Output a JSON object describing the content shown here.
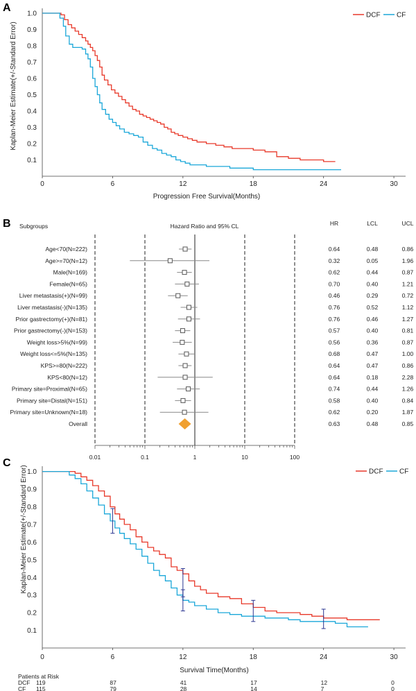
{
  "chart_data": [
    {
      "type": "line",
      "panel_label": "A",
      "ylabel": "Kaplan-Meier Estimate(+/-Standard Error)",
      "xlabel": "Progression Free Survival(Months)",
      "xticks": [
        0,
        6,
        12,
        18,
        24,
        30
      ],
      "yticks": [
        0.1,
        0.2,
        0.3,
        0.4,
        0.5,
        0.6,
        0.7,
        0.8,
        0.9,
        1.0
      ],
      "ytick_labels": [
        "0.1",
        "0.2",
        "0.3",
        "0.4",
        "0.5",
        "0.6",
        "0.7",
        "0.8",
        "0.9",
        "1.0"
      ],
      "xlim": [
        0,
        31
      ],
      "ylim": [
        0,
        1.03
      ],
      "legend": "top-right",
      "series": [
        {
          "name": "DCF",
          "color": "#e8392a",
          "x": [
            0,
            1.6,
            1.9,
            2.2,
            2.5,
            2.8,
            3.1,
            3.4,
            3.7,
            3.9,
            4.1,
            4.3,
            4.5,
            4.7,
            4.9,
            5.1,
            5.3,
            5.6,
            5.9,
            6.2,
            6.5,
            6.8,
            7.1,
            7.4,
            7.7,
            8.0,
            8.3,
            8.6,
            8.9,
            9.2,
            9.5,
            9.8,
            10.1,
            10.4,
            10.7,
            11.0,
            11.3,
            11.6,
            12.0,
            12.4,
            12.8,
            13.2,
            14.0,
            14.8,
            15.5,
            16.2,
            17.0,
            18.0,
            19.0,
            20.0,
            21.0,
            22.0,
            23.0,
            24.0,
            25.0
          ],
          "y": [
            1.0,
            0.99,
            0.96,
            0.93,
            0.91,
            0.89,
            0.87,
            0.85,
            0.83,
            0.81,
            0.79,
            0.77,
            0.74,
            0.71,
            0.67,
            0.62,
            0.59,
            0.56,
            0.53,
            0.51,
            0.49,
            0.47,
            0.45,
            0.43,
            0.41,
            0.4,
            0.38,
            0.37,
            0.36,
            0.35,
            0.34,
            0.33,
            0.32,
            0.3,
            0.29,
            0.27,
            0.26,
            0.25,
            0.24,
            0.23,
            0.22,
            0.21,
            0.2,
            0.19,
            0.18,
            0.17,
            0.17,
            0.16,
            0.15,
            0.12,
            0.11,
            0.1,
            0.1,
            0.09,
            0.09
          ]
        },
        {
          "name": "CF",
          "color": "#1aa7d9",
          "x": [
            0,
            1.5,
            1.8,
            2.0,
            2.3,
            2.6,
            3.0,
            3.4,
            3.7,
            3.9,
            4.1,
            4.3,
            4.5,
            4.7,
            4.9,
            5.1,
            5.4,
            5.7,
            6.0,
            6.3,
            6.6,
            7.0,
            7.4,
            7.8,
            8.2,
            8.6,
            9.0,
            9.4,
            9.8,
            10.2,
            10.6,
            11.0,
            11.4,
            11.8,
            12.2,
            12.6,
            13.0,
            14.0,
            15.0,
            16.0,
            17.0,
            18.0,
            20.0,
            22.0,
            24.0,
            25.5
          ],
          "y": [
            1.0,
            0.97,
            0.92,
            0.86,
            0.81,
            0.79,
            0.79,
            0.78,
            0.75,
            0.72,
            0.67,
            0.6,
            0.55,
            0.5,
            0.45,
            0.41,
            0.38,
            0.35,
            0.33,
            0.31,
            0.29,
            0.27,
            0.26,
            0.25,
            0.24,
            0.21,
            0.19,
            0.17,
            0.16,
            0.14,
            0.13,
            0.12,
            0.1,
            0.09,
            0.08,
            0.07,
            0.07,
            0.06,
            0.06,
            0.05,
            0.05,
            0.04,
            0.04,
            0.04,
            0.04,
            0.04
          ]
        }
      ]
    },
    {
      "type": "forest",
      "panel_label": "B",
      "header_subgroups": "Subgroups",
      "header_plot": "Hazard Ratio and 95% CL",
      "columns": [
        "HR",
        "LCL",
        "UCL"
      ],
      "x_scale": "log",
      "xticks": [
        0.01,
        0.1,
        1,
        10,
        100
      ],
      "xtick_labels": [
        "0.01",
        "0.1",
        "1",
        "10",
        "100"
      ],
      "reference_lines": [
        0.01,
        0.1,
        10,
        100
      ],
      "rows": [
        {
          "label": "Age<70(N=222)",
          "hr": 0.64,
          "lcl": 0.48,
          "ucl": 0.86,
          "hr_text": "0.64",
          "lcl_text": "0.48",
          "ucl_text": "0.86"
        },
        {
          "label": "Age>=70(N=12)",
          "hr": 0.32,
          "lcl": 0.05,
          "ucl": 1.96,
          "hr_text": "0.32",
          "lcl_text": "0.05",
          "ucl_text": "1.96"
        },
        {
          "label": "Male(N=169)",
          "hr": 0.62,
          "lcl": 0.44,
          "ucl": 0.87,
          "hr_text": "0.62",
          "lcl_text": "0.44",
          "ucl_text": "0.87"
        },
        {
          "label": "Female(N=65)",
          "hr": 0.7,
          "lcl": 0.4,
          "ucl": 1.21,
          "hr_text": "0.70",
          "lcl_text": "0.40",
          "ucl_text": "1.21"
        },
        {
          "label": "Liver metastasis(+)(N=99)",
          "hr": 0.46,
          "lcl": 0.29,
          "ucl": 0.72,
          "hr_text": "0.46",
          "lcl_text": "0.29",
          "ucl_text": "0.72"
        },
        {
          "label": "Liver metastasis(-)(N=135)",
          "hr": 0.76,
          "lcl": 0.52,
          "ucl": 1.12,
          "hr_text": "0.76",
          "lcl_text": "0.52",
          "ucl_text": "1.12"
        },
        {
          "label": "Prior gastrectomy(+)(N=81)",
          "hr": 0.76,
          "lcl": 0.46,
          "ucl": 1.27,
          "hr_text": "0.76",
          "lcl_text": "0.46",
          "ucl_text": "1.27"
        },
        {
          "label": "Prior gastrectomy(-)(N=153)",
          "hr": 0.57,
          "lcl": 0.4,
          "ucl": 0.81,
          "hr_text": "0.57",
          "lcl_text": "0.40",
          "ucl_text": "0.81"
        },
        {
          "label": "Weight loss>5%(N=99)",
          "hr": 0.56,
          "lcl": 0.36,
          "ucl": 0.87,
          "hr_text": "0.56",
          "lcl_text": "0.36",
          "ucl_text": "0.87"
        },
        {
          "label": "Weight loss<=5%(N=135)",
          "hr": 0.68,
          "lcl": 0.47,
          "ucl": 1.0,
          "hr_text": "0.68",
          "lcl_text": "0.47",
          "ucl_text": "1.00"
        },
        {
          "label": "KPS>=80(N=222)",
          "hr": 0.64,
          "lcl": 0.47,
          "ucl": 0.86,
          "hr_text": "0.64",
          "lcl_text": "0.47",
          "ucl_text": "0.86"
        },
        {
          "label": "KPS<80(N=12)",
          "hr": 0.64,
          "lcl": 0.18,
          "ucl": 2.28,
          "hr_text": "0.64",
          "lcl_text": "0.18",
          "ucl_text": "2.28"
        },
        {
          "label": "Primary site=Proximal(N=65)",
          "hr": 0.74,
          "lcl": 0.44,
          "ucl": 1.26,
          "hr_text": "0.74",
          "lcl_text": "0.44",
          "ucl_text": "1.26"
        },
        {
          "label": "Primary site=Distal(N=151)",
          "hr": 0.58,
          "lcl": 0.4,
          "ucl": 0.84,
          "hr_text": "0.58",
          "lcl_text": "0.40",
          "ucl_text": "0.84"
        },
        {
          "label": "Primary site=Unknown(N=18)",
          "hr": 0.62,
          "lcl": 0.2,
          "ucl": 1.87,
          "hr_text": "0.62",
          "lcl_text": "0.20",
          "ucl_text": "1.87"
        },
        {
          "label": "Overall",
          "hr": 0.63,
          "lcl": 0.48,
          "ucl": 0.85,
          "hr_text": "0.63",
          "lcl_text": "0.48",
          "ucl_text": "0.85",
          "overall": true
        }
      ],
      "marker_color": "#555555",
      "overall_color": "#f0a030"
    },
    {
      "type": "line",
      "panel_label": "C",
      "ylabel": "Kaplan-Meier Estimate(+/-Standard Error)",
      "xlabel": "Survival Time(Months)",
      "xticks": [
        0,
        6,
        12,
        18,
        24,
        30
      ],
      "yticks": [
        0.1,
        0.2,
        0.3,
        0.4,
        0.5,
        0.6,
        0.7,
        0.8,
        0.9,
        1.0
      ],
      "ytick_labels": [
        "0.1",
        "0.2",
        "0.3",
        "0.4",
        "0.5",
        "0.6",
        "0.7",
        "0.8",
        "0.9",
        "1.0"
      ],
      "xlim": [
        0,
        31
      ],
      "ylim": [
        0,
        1.03
      ],
      "legend": "top-right",
      "series": [
        {
          "name": "DCF",
          "color": "#e8392a",
          "x": [
            0,
            2.8,
            3.3,
            3.8,
            4.3,
            4.8,
            5.3,
            5.8,
            6.2,
            6.6,
            7.0,
            7.5,
            8.0,
            8.5,
            9.0,
            9.5,
            10.0,
            10.5,
            11.0,
            11.5,
            12.0,
            12.5,
            13.0,
            13.5,
            14.0,
            15.0,
            16.0,
            17.0,
            18.0,
            19.0,
            20.0,
            21.0,
            22.0,
            23.0,
            24.0,
            25.0,
            26.0,
            27.0,
            28.8
          ],
          "y": [
            1.0,
            0.99,
            0.97,
            0.95,
            0.92,
            0.89,
            0.86,
            0.8,
            0.76,
            0.73,
            0.7,
            0.67,
            0.63,
            0.6,
            0.57,
            0.55,
            0.53,
            0.51,
            0.46,
            0.44,
            0.42,
            0.38,
            0.35,
            0.33,
            0.31,
            0.29,
            0.28,
            0.25,
            0.23,
            0.21,
            0.2,
            0.2,
            0.19,
            0.18,
            0.17,
            0.17,
            0.16,
            0.16,
            0.16
          ]
        },
        {
          "name": "CF",
          "color": "#1aa7d9",
          "x": [
            0,
            2.3,
            2.8,
            3.3,
            3.8,
            4.3,
            4.8,
            5.3,
            5.8,
            6.2,
            6.6,
            7.0,
            7.5,
            8.0,
            8.5,
            9.0,
            9.5,
            10.0,
            10.5,
            11.0,
            11.5,
            12.0,
            12.5,
            13.0,
            14.0,
            15.0,
            16.0,
            17.0,
            18.0,
            19.0,
            20.0,
            21.0,
            22.0,
            23.0,
            24.0,
            25.0,
            26.0,
            27.8
          ],
          "y": [
            1.0,
            0.98,
            0.96,
            0.93,
            0.89,
            0.85,
            0.81,
            0.76,
            0.72,
            0.68,
            0.65,
            0.62,
            0.59,
            0.56,
            0.52,
            0.48,
            0.44,
            0.41,
            0.38,
            0.34,
            0.3,
            0.27,
            0.26,
            0.24,
            0.22,
            0.2,
            0.19,
            0.18,
            0.18,
            0.17,
            0.17,
            0.16,
            0.15,
            0.15,
            0.15,
            0.14,
            0.12,
            0.12
          ]
        }
      ],
      "error_bars": [
        {
          "x": 6,
          "y": 0.72,
          "lo": 0.65,
          "hi": 0.79
        },
        {
          "x": 12,
          "y": 0.37,
          "lo": 0.29,
          "hi": 0.45
        },
        {
          "x": 12,
          "y": 0.27,
          "lo": 0.21,
          "hi": 0.33
        },
        {
          "x": 18,
          "y": 0.21,
          "lo": 0.15,
          "hi": 0.27
        },
        {
          "x": 24,
          "y": 0.16,
          "lo": 0.11,
          "hi": 0.22
        }
      ],
      "error_bar_color": "#2a3590",
      "at_risk": {
        "title": "Patients at Risk",
        "rows": [
          {
            "name": "DCF",
            "values": [
              "119",
              "87",
              "41",
              "17",
              "12",
              "0"
            ]
          },
          {
            "name": "CF",
            "values": [
              "115",
              "79",
              "28",
              "14",
              "7",
              "0"
            ]
          }
        ]
      }
    }
  ]
}
